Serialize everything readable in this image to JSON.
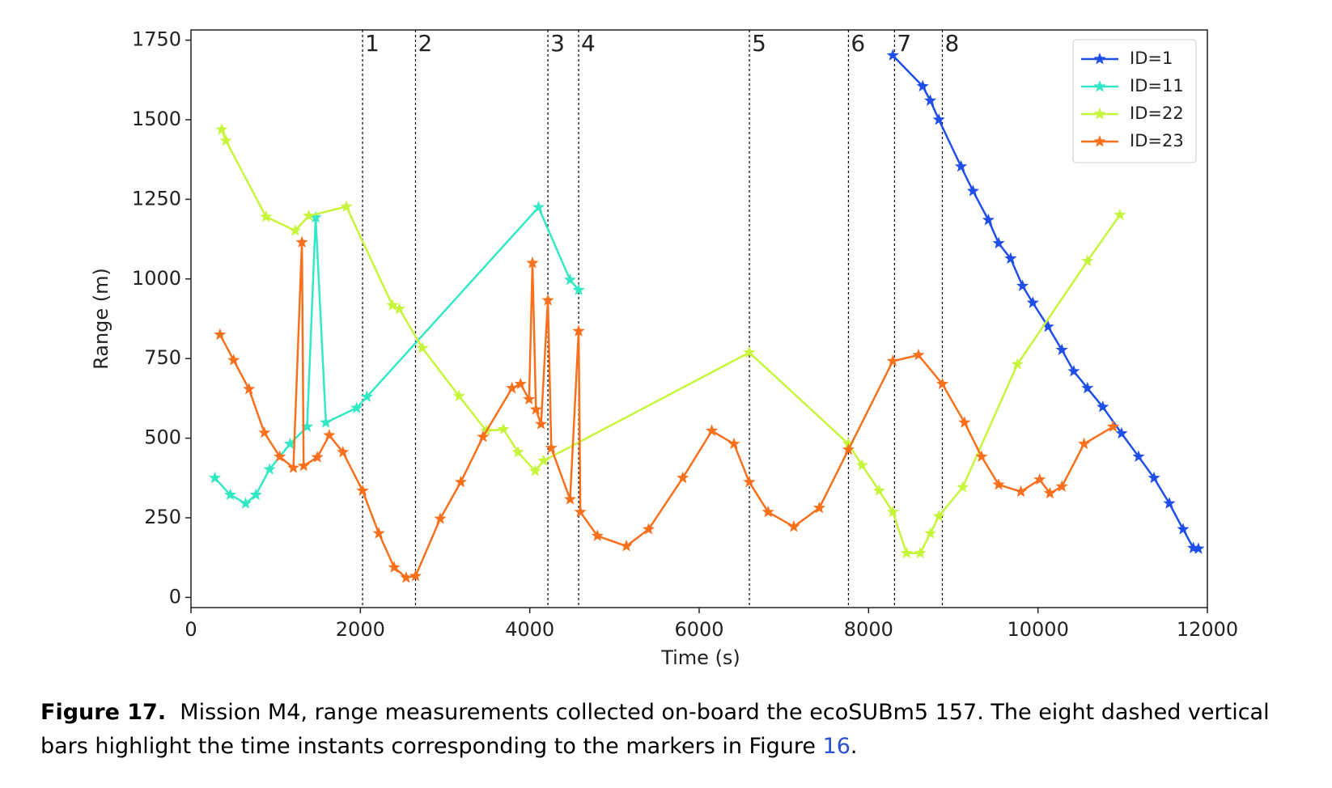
{
  "chart_data": {
    "type": "line",
    "xlabel": "Time (s)",
    "ylabel": "Range (m)",
    "xlim": [
      0,
      12000
    ],
    "ylim": [
      -32,
      1782
    ],
    "xticks": [
      0,
      2000,
      4000,
      6000,
      8000,
      10000,
      12000
    ],
    "yticks": [
      0,
      250,
      500,
      750,
      1000,
      1250,
      1500,
      1750
    ],
    "legend": "upper right",
    "marker": "star",
    "vlines": [
      {
        "x": 2026,
        "label": "1"
      },
      {
        "x": 2651,
        "label": "2"
      },
      {
        "x": 4214,
        "label": "3"
      },
      {
        "x": 4577,
        "label": "4"
      },
      {
        "x": 6593,
        "label": "5"
      },
      {
        "x": 7762,
        "label": "6"
      },
      {
        "x": 8306,
        "label": "7"
      },
      {
        "x": 8871,
        "label": "8"
      }
    ],
    "series": [
      {
        "name": "ID=1",
        "color": "#1f4fe8",
        "x": [
          8286,
          8639,
          8729,
          8830,
          9092,
          9233,
          9415,
          9536,
          9677,
          9818,
          9939,
          10120,
          10282,
          10423,
          10584,
          10765,
          10987,
          11188,
          11370,
          11551,
          11713,
          11834,
          11894
        ],
        "values": [
          1702,
          1605,
          1560,
          1500,
          1353,
          1276,
          1185,
          1112,
          1064,
          978,
          925,
          850,
          777,
          710,
          657,
          598,
          515,
          442,
          375,
          295,
          214,
          155,
          153
        ]
      },
      {
        "name": "ID=11",
        "color": "#33e8c4",
        "x": [
          282,
          464,
          645,
          766,
          927,
          1169,
          1371,
          1472,
          1593,
          1956,
          2077,
          4103,
          4476,
          4577
        ],
        "values": [
          375,
          322,
          295,
          322,
          402,
          482,
          536,
          1193,
          549,
          595,
          630,
          1225,
          997,
          965
        ]
      },
      {
        "name": "ID=22",
        "color": "#c6f53c",
        "x": [
          363,
          413,
          887,
          1230,
          1391,
          1835,
          2379,
          2460,
          2732,
          3165,
          3488,
          3690,
          3861,
          4063,
          4164,
          6592,
          7762,
          7923,
          8125,
          8286,
          8448,
          8609,
          8730,
          8830,
          9112,
          9757,
          10584,
          10967
        ],
        "values": [
          1469,
          1434,
          1195,
          1152,
          1198,
          1227,
          917,
          906,
          783,
          632,
          523,
          528,
          456,
          397,
          429,
          769,
          482,
          415,
          335,
          268,
          139,
          139,
          201,
          255,
          346,
          732,
          1056,
          1201
        ]
      },
      {
        "name": "ID=23",
        "color": "#f8701c",
        "x": [
          343,
          504,
          685,
          867,
          1048,
          1209,
          1310,
          1330,
          1492,
          1633,
          1794,
          2026,
          2218,
          2399,
          2540,
          2651,
          2943,
          3185,
          3447,
          3790,
          3891,
          3992,
          4032,
          4073,
          4133,
          4214,
          4254,
          4476,
          4577,
          4597,
          4799,
          5141,
          5403,
          5806,
          6149,
          6411,
          6592,
          6814,
          7117,
          7419,
          7762,
          8286,
          8589,
          8871,
          9133,
          9334,
          9536,
          9798,
          10020,
          10141,
          10282,
          10544,
          10887
        ],
        "values": [
          825,
          745,
          654,
          517,
          442,
          407,
          1115,
          413,
          440,
          509,
          456,
          335,
          201,
          94,
          62,
          67,
          247,
          362,
          504,
          657,
          670,
          622,
          1050,
          590,
          544,
          933,
          469,
          308,
          836,
          268,
          193,
          161,
          214,
          375,
          523,
          482,
          362,
          268,
          222,
          281,
          464,
          742,
          761,
          670,
          549,
          442,
          354,
          332,
          370,
          327,
          348,
          482,
          536
        ]
      }
    ]
  },
  "caption": {
    "label": "Figure 17.",
    "text": "Mission M4, range measurements collected on-board the ecoSUBm5 157. The eight dashed vertical bars highlight the time instants corresponding to the markers in Figure ",
    "link": "16",
    "end": "."
  }
}
